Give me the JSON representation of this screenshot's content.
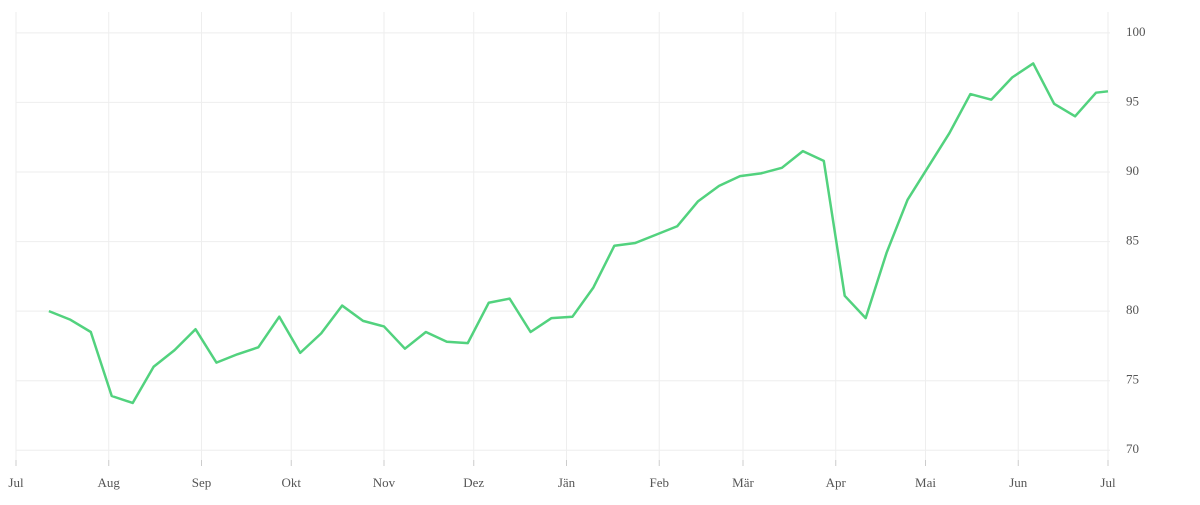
{
  "chart_data": {
    "type": "line",
    "x": [
      11,
      18,
      25,
      32,
      39,
      46,
      53,
      60,
      67,
      74,
      81,
      88,
      95,
      102,
      109,
      116,
      123,
      130,
      137,
      144,
      151,
      158,
      165,
      172,
      179,
      186,
      193,
      200,
      207,
      214,
      221,
      228,
      235,
      242,
      249,
      256,
      263,
      270,
      277,
      284,
      291,
      298,
      305,
      312,
      319,
      326,
      333,
      340,
      347,
      354,
      361,
      365
    ],
    "series": [
      {
        "color": "#52d27e",
        "values": [
          80.0,
          79.4,
          78.5,
          73.9,
          73.4,
          76.0,
          77.2,
          78.7,
          76.3,
          76.9,
          77.4,
          79.6,
          77.0,
          78.4,
          80.4,
          79.3,
          78.9,
          77.3,
          78.5,
          77.8,
          77.7,
          80.6,
          80.9,
          78.5,
          79.5,
          79.6,
          81.7,
          84.7,
          84.9,
          85.5,
          86.1,
          87.9,
          89.0,
          89.7,
          89.9,
          90.3,
          91.5,
          90.8,
          81.1,
          79.5,
          84.2,
          88.0,
          90.4,
          92.8,
          95.6,
          95.2,
          96.8,
          97.8,
          94.9,
          94.0,
          95.7,
          95.8
        ]
      }
    ],
    "xlim": [
      0,
      365
    ],
    "xticks": [
      {
        "value": 0,
        "label": "Jul"
      },
      {
        "value": 31,
        "label": "Aug"
      },
      {
        "value": 62,
        "label": "Sep"
      },
      {
        "value": 92,
        "label": "Okt"
      },
      {
        "value": 123,
        "label": "Nov"
      },
      {
        "value": 153,
        "label": "Dez"
      },
      {
        "value": 184,
        "label": "Jän"
      },
      {
        "value": 215,
        "label": "Feb"
      },
      {
        "value": 243,
        "label": "Mär"
      },
      {
        "value": 274,
        "label": "Apr"
      },
      {
        "value": 304,
        "label": "Mai"
      },
      {
        "value": 335,
        "label": "Jun"
      },
      {
        "value": 365,
        "label": "Jul"
      }
    ],
    "ylim": [
      69.3,
      101.5
    ],
    "yticks": [
      70,
      75,
      80,
      85,
      90,
      95,
      100
    ],
    "grid": true
  }
}
